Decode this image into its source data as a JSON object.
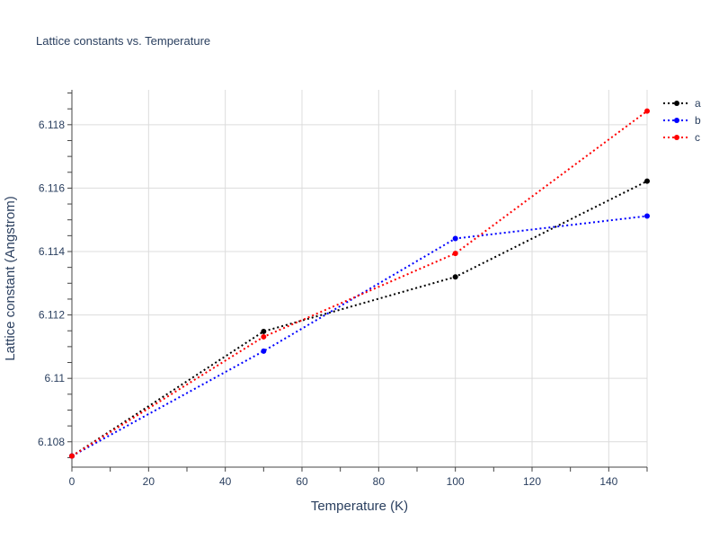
{
  "chart_data": {
    "type": "line",
    "title": "Lattice constants vs. Temperature",
    "xlabel": "Temperature (K)",
    "ylabel": "Lattice constant (Angstrom)",
    "x": [
      0,
      50,
      100,
      150
    ],
    "xlim": [
      0,
      150
    ],
    "ylim": [
      6.1072,
      6.1191
    ],
    "xticks": [
      0,
      20,
      40,
      60,
      80,
      100,
      120,
      140
    ],
    "xtick_labels": [
      "0",
      "20",
      "40",
      "60",
      "80",
      "100",
      "120",
      "140"
    ],
    "yticks": [
      6.108,
      6.11,
      6.112,
      6.114,
      6.116,
      6.118
    ],
    "ytick_labels": [
      "6.108",
      "6.11",
      "6.112",
      "6.114",
      "6.116",
      "6.118"
    ],
    "grid": true,
    "legend_position": "top-right",
    "series": [
      {
        "name": "a",
        "color": "#000000",
        "line_style": "dotted",
        "values": [
          6.10755,
          6.11148,
          6.1132,
          6.11622
        ]
      },
      {
        "name": "b",
        "color": "#0000ff",
        "line_style": "dotted",
        "values": [
          6.10755,
          6.11086,
          6.11441,
          6.11512
        ]
      },
      {
        "name": "c",
        "color": "#ff0000",
        "line_style": "dotted",
        "values": [
          6.10755,
          6.11131,
          6.11394,
          6.11843
        ]
      }
    ]
  }
}
